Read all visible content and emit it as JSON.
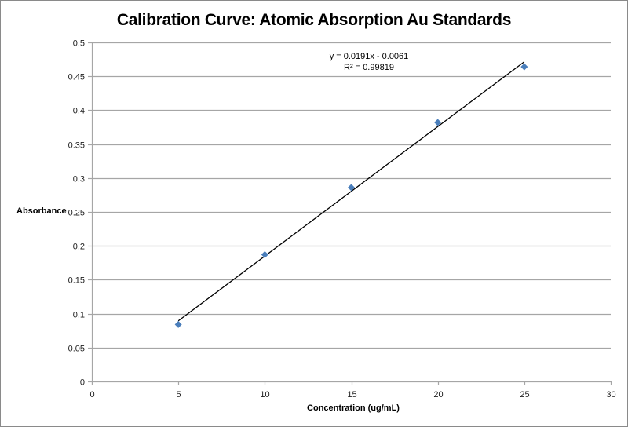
{
  "chart_data": {
    "type": "scatter",
    "title": "Calibration Curve: Atomic Absorption Au Standards",
    "xlabel": "Concentration (ug/mL)",
    "ylabel": "Absorbance",
    "xlim": [
      0,
      30
    ],
    "ylim": [
      0,
      0.5
    ],
    "x_ticks": [
      "0",
      "5",
      "10",
      "15",
      "20",
      "25",
      "30"
    ],
    "y_ticks": [
      "0",
      "0.05",
      "0.1",
      "0.15",
      "0.2",
      "0.25",
      "0.3",
      "0.35",
      "0.4",
      "0.45",
      "0.5"
    ],
    "grid": "horizontal major gridlines",
    "legend": "none",
    "series": [
      {
        "name": "Au Standards",
        "marker": "diamond",
        "color": "#4a7ebb",
        "x": [
          5,
          10,
          15,
          20,
          25
        ],
        "y": [
          0.084,
          0.187,
          0.286,
          0.382,
          0.464
        ]
      }
    ],
    "trendline": {
      "type": "linear",
      "slope": 0.0191,
      "intercept": -0.0061,
      "x_range": [
        5,
        25
      ],
      "color": "#000000",
      "equation_label": "y = 0.0191x - 0.0061",
      "r2_label": "R² = 0.99819"
    }
  },
  "labels": {
    "title": "Calibration Curve: Atomic Absorption Au Standards",
    "xlabel": "Concentration (ug/mL)",
    "ylabel": "Absorbance",
    "equation": "y = 0.0191x - 0.0061",
    "r2": "R² = 0.99819"
  }
}
